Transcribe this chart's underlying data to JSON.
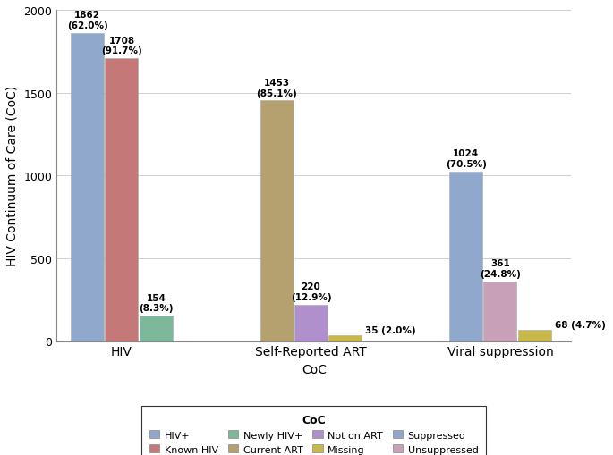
{
  "groups": [
    "HIV",
    "Self-Reported ART",
    "Viral suppression"
  ],
  "bars": {
    "HIV": [
      {
        "label": "HIV+",
        "value": 1862,
        "pct": "62.0%",
        "color": "#8fa8cc",
        "label_inline": false
      },
      {
        "label": "Known HIV",
        "value": 1708,
        "pct": "91.7%",
        "color": "#c47878",
        "label_inline": false
      },
      {
        "label": "Newly HIV+",
        "value": 154,
        "pct": "8.3%",
        "color": "#7db89a",
        "label_inline": false
      }
    ],
    "Self-Reported ART": [
      {
        "label": "Current ART",
        "value": 1453,
        "pct": "85.1%",
        "color": "#b5a070",
        "label_inline": false
      },
      {
        "label": "Not on ART",
        "value": 220,
        "pct": "12.9%",
        "color": "#b090cc",
        "label_inline": false
      },
      {
        "label": "Missing",
        "value": 35,
        "pct": "2.0%",
        "color": "#c8b84a",
        "label_inline": true
      }
    ],
    "Viral suppression": [
      {
        "label": "Suppressed",
        "value": 1024,
        "pct": "70.5%",
        "color": "#8fa8cc",
        "label_inline": false
      },
      {
        "label": "Unsuppressed",
        "value": 361,
        "pct": "24.8%",
        "color": "#c8a0b8",
        "label_inline": false
      },
      {
        "label": "Missing",
        "value": 68,
        "pct": "4.7%",
        "color": "#c8b84a",
        "label_inline": true
      }
    ]
  },
  "ylabel": "HIV Continuum of Care (CoC)",
  "xlabel": "CoC",
  "ylim": [
    0,
    2000
  ],
  "yticks": [
    0,
    500,
    1000,
    1500,
    2000
  ],
  "legend_title": "CoC",
  "legend_row1": [
    {
      "label": "HIV+",
      "color": "#8fa8cc"
    },
    {
      "label": "Known HIV",
      "color": "#c47878"
    },
    {
      "label": "Newly HIV+",
      "color": "#7db89a"
    },
    {
      "label": "Current ART",
      "color": "#b5a070"
    }
  ],
  "legend_row2": [
    {
      "label": "Not on ART",
      "color": "#b090cc"
    },
    {
      "label": "Missing",
      "color": "#c8b84a"
    },
    {
      "label": "Suppressed",
      "color": "#8fa8cc"
    },
    {
      "label": "Unsuppressed",
      "color": "#c8a0b8"
    }
  ],
  "background_color": "#ffffff",
  "grid_color": "#d0d0d0"
}
